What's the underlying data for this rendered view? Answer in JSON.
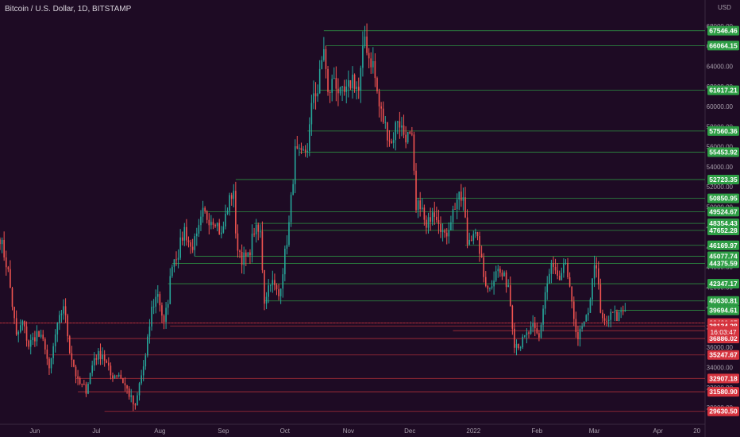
{
  "header": {
    "title": "Bitcoin / U.S. Dollar, 1D, BITSTAMP"
  },
  "chart_data": {
    "type": "candlestick",
    "title": "Bitcoin / U.S. Dollar, 1D, BITSTAMP",
    "ylabel": "USD",
    "y_unit": "USD",
    "ylim": [
      28500,
      69500
    ],
    "xlim": [
      "2021-05-15",
      "2022-04-24"
    ],
    "y_ticks": [
      30000,
      32000,
      34000,
      36000,
      38000,
      40000,
      42000,
      44000,
      46000,
      48000,
      50000,
      52000,
      54000,
      56000,
      58000,
      60000,
      62000,
      64000,
      66000,
      68000
    ],
    "x_ticks": [
      {
        "label": "Jun",
        "date": "2021-06-01"
      },
      {
        "label": "Jul",
        "date": "2021-07-01"
      },
      {
        "label": "Aug",
        "date": "2021-08-01"
      },
      {
        "label": "Sep",
        "date": "2021-09-01"
      },
      {
        "label": "Oct",
        "date": "2021-10-01"
      },
      {
        "label": "Nov",
        "date": "2021-11-01"
      },
      {
        "label": "Dec",
        "date": "2021-12-01"
      },
      {
        "label": "2022",
        "date": "2022-01-01"
      },
      {
        "label": "Feb",
        "date": "2022-02-01"
      },
      {
        "label": "Mar",
        "date": "2022-03-01"
      },
      {
        "label": "Apr",
        "date": "2022-04-01"
      },
      {
        "label": "20",
        "date": "2022-04-20"
      }
    ],
    "price_lines": [
      {
        "price": 67546.46,
        "label": "67546.46",
        "kind": "resistance",
        "start": "2021-10-20"
      },
      {
        "price": 66064.15,
        "label": "66064.15",
        "kind": "resistance",
        "start": "2021-10-21"
      },
      {
        "price": 61617.21,
        "label": "61617.21",
        "kind": "resistance",
        "start": "2021-10-18"
      },
      {
        "price": 57560.36,
        "label": "57560.36",
        "kind": "resistance",
        "start": "2021-10-12"
      },
      {
        "price": 55453.92,
        "label": "55453.92",
        "kind": "resistance",
        "start": "2021-10-08"
      },
      {
        "price": 52723.35,
        "label": "52723.35",
        "kind": "resistance",
        "start": "2021-09-07"
      },
      {
        "price": 50850.95,
        "label": "50850.95",
        "kind": "resistance",
        "start": "2021-12-04"
      },
      {
        "price": 49524.67,
        "label": "49524.67",
        "kind": "resistance",
        "start": "2021-08-23"
      },
      {
        "price": 48354.43,
        "label": "48354.43",
        "kind": "resistance",
        "start": "2021-09-16"
      },
      {
        "price": 47652.28,
        "label": "47652.28",
        "kind": "resistance",
        "start": "2021-09-19"
      },
      {
        "price": 46169.97,
        "label": "46169.97",
        "kind": "resistance",
        "start": "2021-12-28"
      },
      {
        "price": 45077.74,
        "label": "45077.74",
        "kind": "resistance",
        "start": "2021-08-18"
      },
      {
        "price": 44375.59,
        "label": "44375.59",
        "kind": "resistance",
        "start": "2021-08-07"
      },
      {
        "price": 42347.17,
        "label": "42347.17",
        "kind": "resistance",
        "start": "2021-08-05"
      },
      {
        "price": 40630.81,
        "label": "40630.81",
        "kind": "resistance",
        "start": "2021-09-21"
      },
      {
        "price": 39694.61,
        "label": "39694.61",
        "kind": "current",
        "start": "2022-03-11"
      },
      {
        "price": 38426.27,
        "label": "38426.27",
        "kind": "support",
        "start": "2021-05-15"
      },
      {
        "price": 38134.28,
        "label": "38134.28",
        "kind": "support",
        "start": "2021-08-06"
      },
      {
        "price": 37666.18,
        "label": "37666.18",
        "kind": "support",
        "start": "2021-12-22"
      },
      {
        "price": 36886.02,
        "label": "36886.02",
        "kind": "support",
        "start": "2021-06-17"
      },
      {
        "price": 35247.67,
        "label": "35247.67",
        "kind": "support",
        "start": "2021-06-08"
      },
      {
        "price": 32907.18,
        "label": "32907.18",
        "kind": "support",
        "start": "2021-06-21"
      },
      {
        "price": 31580.9,
        "label": "31580.90",
        "kind": "support",
        "start": "2021-06-22"
      },
      {
        "price": 29630.5,
        "label": "29630.50",
        "kind": "support",
        "start": "2021-07-05"
      }
    ],
    "countdown_label": "16:03:47",
    "series": [
      {
        "date": "2021-05-15",
        "close": 47000
      },
      {
        "date": "2021-05-19",
        "close": 43500
      },
      {
        "date": "2021-05-23",
        "close": 37000
      },
      {
        "date": "2021-05-26",
        "close": 38500
      },
      {
        "date": "2021-05-29",
        "close": 36200
      },
      {
        "date": "2021-06-02",
        "close": 37400
      },
      {
        "date": "2021-06-06",
        "close": 36200
      },
      {
        "date": "2021-06-08",
        "close": 33500
      },
      {
        "date": "2021-06-11",
        "close": 37200
      },
      {
        "date": "2021-06-15",
        "close": 40300
      },
      {
        "date": "2021-06-18",
        "close": 35800
      },
      {
        "date": "2021-06-22",
        "close": 32500
      },
      {
        "date": "2021-06-26",
        "close": 31800
      },
      {
        "date": "2021-06-30",
        "close": 35000
      },
      {
        "date": "2021-07-04",
        "close": 35400
      },
      {
        "date": "2021-07-08",
        "close": 33200
      },
      {
        "date": "2021-07-12",
        "close": 33400
      },
      {
        "date": "2021-07-16",
        "close": 31800
      },
      {
        "date": "2021-07-20",
        "close": 29900
      },
      {
        "date": "2021-07-22",
        "close": 32300
      },
      {
        "date": "2021-07-25",
        "close": 35000
      },
      {
        "date": "2021-07-28",
        "close": 39800
      },
      {
        "date": "2021-07-31",
        "close": 41500
      },
      {
        "date": "2021-08-03",
        "close": 38200
      },
      {
        "date": "2021-08-05",
        "close": 40800
      },
      {
        "date": "2021-08-07",
        "close": 44600
      },
      {
        "date": "2021-08-10",
        "close": 45500
      },
      {
        "date": "2021-08-13",
        "close": 47800
      },
      {
        "date": "2021-08-16",
        "close": 45900
      },
      {
        "date": "2021-08-19",
        "close": 46800
      },
      {
        "date": "2021-08-22",
        "close": 49300
      },
      {
        "date": "2021-08-25",
        "close": 48900
      },
      {
        "date": "2021-08-28",
        "close": 48800
      },
      {
        "date": "2021-08-31",
        "close": 47100
      },
      {
        "date": "2021-09-03",
        "close": 50000
      },
      {
        "date": "2021-09-06",
        "close": 51800
      },
      {
        "date": "2021-09-07",
        "close": 46800
      },
      {
        "date": "2021-09-10",
        "close": 44900
      },
      {
        "date": "2021-09-13",
        "close": 44900
      },
      {
        "date": "2021-09-16",
        "close": 47700
      },
      {
        "date": "2021-09-19",
        "close": 47300
      },
      {
        "date": "2021-09-21",
        "close": 40700
      },
      {
        "date": "2021-09-24",
        "close": 42800
      },
      {
        "date": "2021-09-28",
        "close": 41100
      },
      {
        "date": "2021-09-30",
        "close": 43800
      },
      {
        "date": "2021-10-03",
        "close": 48200
      },
      {
        "date": "2021-10-06",
        "close": 55400
      },
      {
        "date": "2021-10-09",
        "close": 54900
      },
      {
        "date": "2021-10-12",
        "close": 56000
      },
      {
        "date": "2021-10-15",
        "close": 61500
      },
      {
        "date": "2021-10-17",
        "close": 61500
      },
      {
        "date": "2021-10-20",
        "close": 66000
      },
      {
        "date": "2021-10-22",
        "close": 61000
      },
      {
        "date": "2021-10-25",
        "close": 63000
      },
      {
        "date": "2021-10-28",
        "close": 61000
      },
      {
        "date": "2021-10-31",
        "close": 61300
      },
      {
        "date": "2021-11-03",
        "close": 62900
      },
      {
        "date": "2021-11-06",
        "close": 61500
      },
      {
        "date": "2021-11-09",
        "close": 67000
      },
      {
        "date": "2021-11-11",
        "close": 64900
      },
      {
        "date": "2021-11-13",
        "close": 64200
      },
      {
        "date": "2021-11-16",
        "close": 60000
      },
      {
        "date": "2021-11-19",
        "close": 58000
      },
      {
        "date": "2021-11-22",
        "close": 56300
      },
      {
        "date": "2021-11-25",
        "close": 58900
      },
      {
        "date": "2021-11-28",
        "close": 57300
      },
      {
        "date": "2021-11-30",
        "close": 57000
      },
      {
        "date": "2021-12-02",
        "close": 56500
      },
      {
        "date": "2021-12-04",
        "close": 49400
      },
      {
        "date": "2021-12-06",
        "close": 50500
      },
      {
        "date": "2021-12-09",
        "close": 47600
      },
      {
        "date": "2021-12-12",
        "close": 50000
      },
      {
        "date": "2021-12-15",
        "close": 48900
      },
      {
        "date": "2021-12-18",
        "close": 46800
      },
      {
        "date": "2021-12-21",
        "close": 48900
      },
      {
        "date": "2021-12-24",
        "close": 50800
      },
      {
        "date": "2021-12-27",
        "close": 50700
      },
      {
        "date": "2021-12-29",
        "close": 46400
      },
      {
        "date": "2022-01-01",
        "close": 47700
      },
      {
        "date": "2022-01-04",
        "close": 45800
      },
      {
        "date": "2022-01-06",
        "close": 43000
      },
      {
        "date": "2022-01-09",
        "close": 41800
      },
      {
        "date": "2022-01-12",
        "close": 43900
      },
      {
        "date": "2022-01-15",
        "close": 43100
      },
      {
        "date": "2022-01-18",
        "close": 42300
      },
      {
        "date": "2022-01-21",
        "close": 36500
      },
      {
        "date": "2022-01-24",
        "close": 36300
      },
      {
        "date": "2022-01-27",
        "close": 37200
      },
      {
        "date": "2022-01-30",
        "close": 37900
      },
      {
        "date": "2022-02-02",
        "close": 36900
      },
      {
        "date": "2022-02-05",
        "close": 41500
      },
      {
        "date": "2022-02-08",
        "close": 44100
      },
      {
        "date": "2022-02-10",
        "close": 43500
      },
      {
        "date": "2022-02-12",
        "close": 42200
      },
      {
        "date": "2022-02-15",
        "close": 44500
      },
      {
        "date": "2022-02-18",
        "close": 40000
      },
      {
        "date": "2022-02-21",
        "close": 37000
      },
      {
        "date": "2022-02-24",
        "close": 38300
      },
      {
        "date": "2022-02-26",
        "close": 39100
      },
      {
        "date": "2022-02-28",
        "close": 43200
      },
      {
        "date": "2022-03-02",
        "close": 44400
      },
      {
        "date": "2022-03-04",
        "close": 39100
      },
      {
        "date": "2022-03-06",
        "close": 38400
      },
      {
        "date": "2022-03-08",
        "close": 38800
      },
      {
        "date": "2022-03-10",
        "close": 39400
      },
      {
        "date": "2022-03-12",
        "close": 38900
      },
      {
        "date": "2022-03-14",
        "close": 39700
      },
      {
        "date": "2022-03-16",
        "close": 39700
      }
    ]
  }
}
